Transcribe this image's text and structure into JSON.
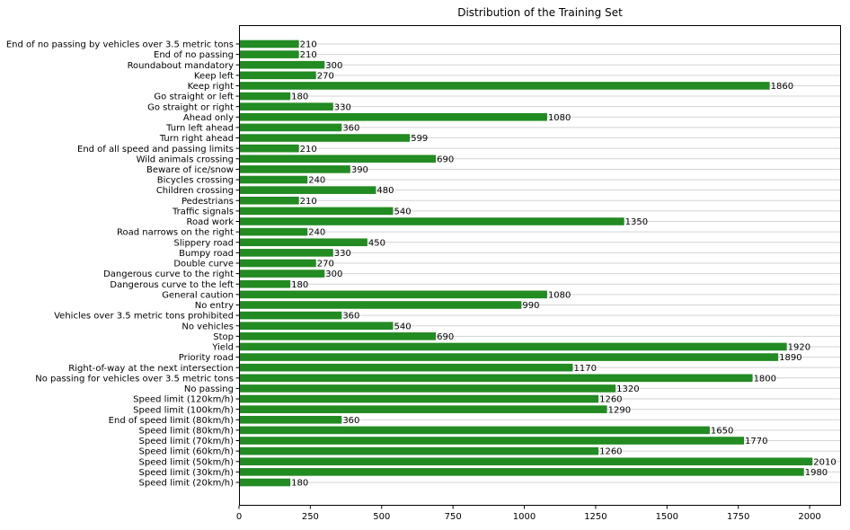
{
  "chart_data": {
    "type": "bar",
    "orientation": "horizontal",
    "title": "Distribution of the Training Set",
    "xlabel": "",
    "ylabel": "",
    "xlim": [
      0,
      2110
    ],
    "xticks": [
      0,
      250,
      500,
      750,
      1000,
      1250,
      1500,
      1750,
      2000
    ],
    "grid": "horizontal",
    "bar_color": "#228b22",
    "grid_color": "#d3d3d3",
    "categories": [
      "Speed limit (20km/h)",
      "Speed limit (30km/h)",
      "Speed limit (50km/h)",
      "Speed limit (60km/h)",
      "Speed limit (70km/h)",
      "Speed limit (80km/h)",
      "End of speed limit (80km/h)",
      "Speed limit (100km/h)",
      "Speed limit (120km/h)",
      "No passing",
      "No passing for vehicles over 3.5 metric tons",
      "Right-of-way at the next intersection",
      "Priority road",
      "Yield",
      "Stop",
      "No vehicles",
      "Vehicles over 3.5 metric tons prohibited",
      "No entry",
      "General caution",
      "Dangerous curve to the left",
      "Dangerous curve to the right",
      "Double curve",
      "Bumpy road",
      "Slippery road",
      "Road narrows on the right",
      "Road work",
      "Traffic signals",
      "Pedestrians",
      "Children crossing",
      "Bicycles crossing",
      "Beware of ice/snow",
      "Wild animals crossing",
      "End of all speed and passing limits",
      "Turn right ahead",
      "Turn left ahead",
      "Ahead only",
      "Go straight or right",
      "Go straight or left",
      "Keep right",
      "Keep left",
      "Roundabout mandatory",
      "End of no passing",
      "End of no passing by vehicles over 3.5 metric tons"
    ],
    "values": [
      180,
      1980,
      2010,
      1260,
      1770,
      1650,
      360,
      1290,
      1260,
      1320,
      1800,
      1170,
      1890,
      1920,
      690,
      540,
      360,
      990,
      1080,
      180,
      300,
      270,
      330,
      450,
      240,
      1350,
      540,
      210,
      480,
      240,
      390,
      690,
      210,
      599,
      360,
      1080,
      330,
      180,
      1860,
      270,
      300,
      210,
      210
    ]
  }
}
